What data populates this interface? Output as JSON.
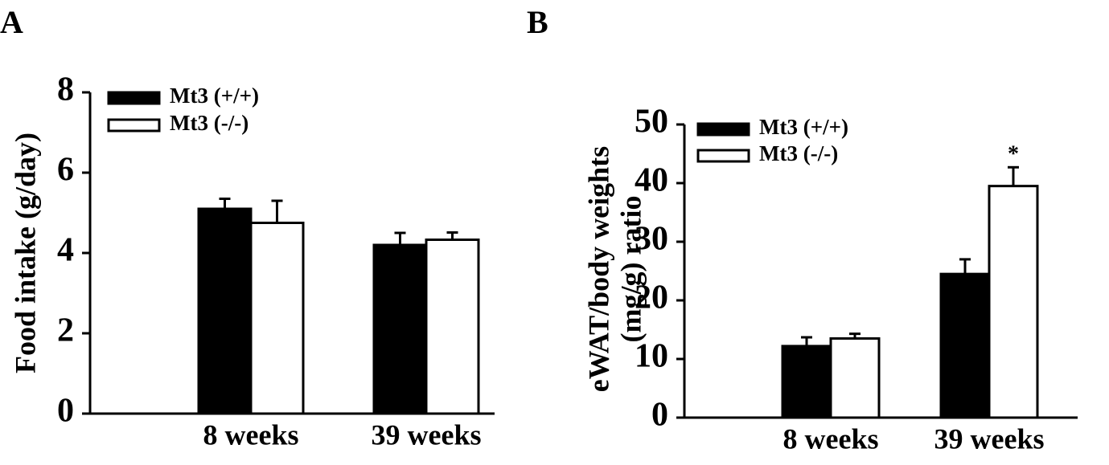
{
  "chart_data": [
    {
      "type": "bar",
      "panel_label": "A",
      "ylabel": [
        "Food intake (g/day)"
      ],
      "categories": [
        "8 weeks",
        "39 weeks"
      ],
      "series": [
        {
          "name": "Mt3 (+/+)",
          "color": "#000000",
          "values": [
            5.1,
            4.2
          ],
          "errors": [
            0.25,
            0.3
          ]
        },
        {
          "name": "Mt3 (-/-)",
          "color": "#ffffff",
          "values": [
            4.75,
            4.33
          ],
          "errors": [
            0.55,
            0.18
          ]
        }
      ],
      "ylim": [
        0,
        8
      ],
      "yticks": [
        0,
        2,
        4,
        6,
        8
      ],
      "grid": false
    },
    {
      "type": "bar",
      "panel_label": "B",
      "ylabel": [
        "eWAT/body weights",
        "(mg/g) ratio"
      ],
      "categories": [
        "8 weeks",
        "39 weeks"
      ],
      "series": [
        {
          "name": "Mt3 (+/+)",
          "color": "#000000",
          "values": [
            12.2,
            24.5
          ],
          "errors": [
            1.5,
            2.5
          ]
        },
        {
          "name": "Mt3 (-/-)",
          "color": "#ffffff",
          "values": [
            13.5,
            39.5
          ],
          "errors": [
            0.8,
            3.2
          ]
        }
      ],
      "annotation": "*",
      "ylim": [
        0,
        50
      ],
      "yticks": [
        0,
        10,
        20,
        30,
        40,
        50
      ],
      "grid": false
    }
  ]
}
